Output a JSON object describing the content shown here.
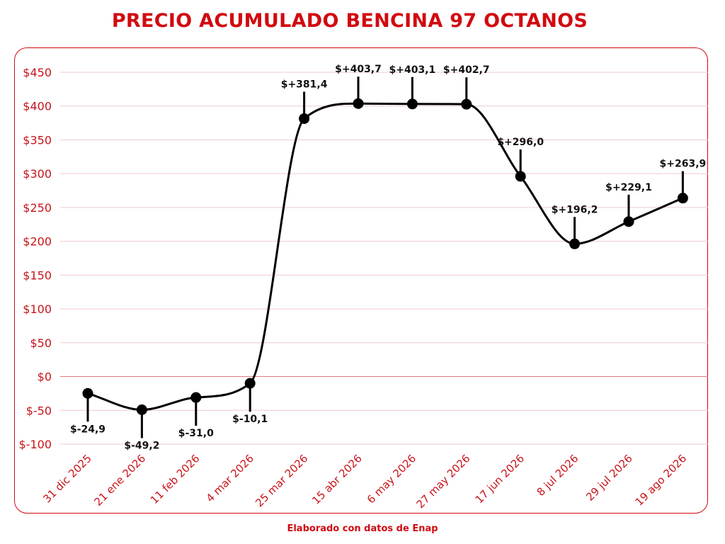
{
  "footer": "Elaborado con datos de Enap",
  "colors": {
    "accent": "#d10a10",
    "grid": "#f1c9cb",
    "zero_line": "#e07a7f",
    "line": "#000000"
  },
  "chart_data": {
    "type": "line",
    "title": "PRECIO ACUMULADO BENCINA 97 OCTANOS",
    "xlabel": "",
    "ylabel": "",
    "ylim": [
      -100,
      450
    ],
    "yticks": [
      450,
      400,
      350,
      300,
      250,
      200,
      150,
      100,
      50,
      0,
      -50,
      -100
    ],
    "ytick_labels": [
      "$450",
      "$400",
      "$350",
      "$300",
      "$250",
      "$200",
      "$150",
      "$100",
      "$50",
      "$0",
      "$-50",
      "$-100"
    ],
    "grid": true,
    "categories": [
      "31 dic 2025",
      "21 ene 2026",
      "11 feb 2026",
      "4 mar 2026",
      "25 mar 2026",
      "15 abr 2026",
      "6 may 2026",
      "27 may 2026",
      "17 jun 2026",
      "8 jul 2026",
      "29 jul 2026",
      "19 ago 2026"
    ],
    "values": [
      -24.9,
      -49.2,
      -31.0,
      -10.1,
      381.4,
      403.7,
      403.1,
      402.7,
      296.0,
      196.2,
      229.1,
      263.9
    ],
    "data_labels": [
      "$-24,9",
      "$-49,2",
      "$-31,0",
      "$-10,1",
      "$+381,4",
      "$+403,7",
      "$+403,1",
      "$+402,7",
      "$+296,0",
      "$+196,2",
      "$+229,1",
      "$+263,9"
    ]
  }
}
